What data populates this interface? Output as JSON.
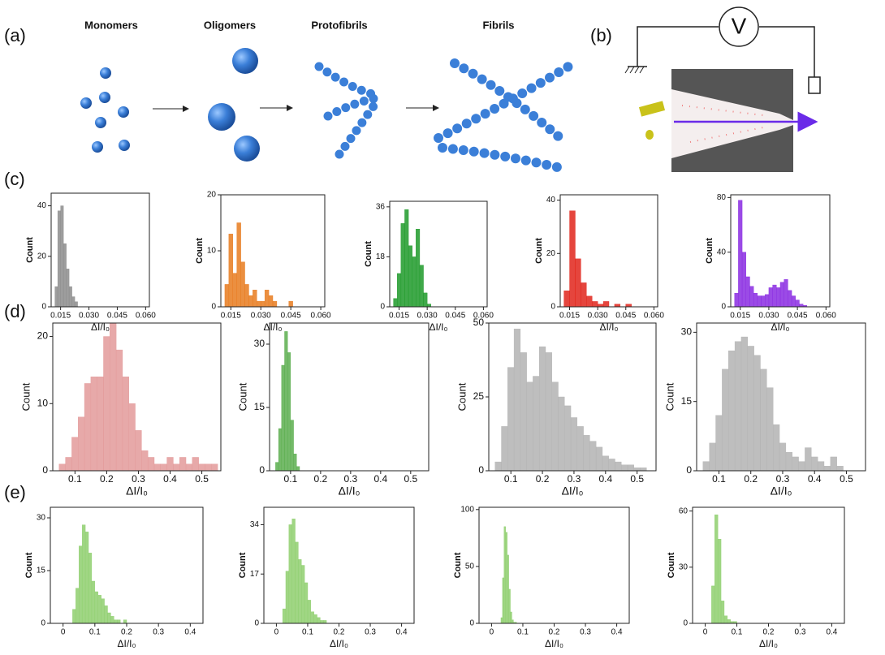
{
  "figure": {
    "panel_labels": [
      "(a)",
      "(b)",
      "(c)",
      "(d)",
      "(e)"
    ],
    "stages": [
      "Monomers",
      "Oligomers",
      "Protofibrils",
      "Fibrils"
    ],
    "voltmeter": "V"
  },
  "chart_data": [
    {
      "type": "histogram",
      "xlabel": "ΔI/I₀",
      "ylabel": "Count",
      "xlim": [
        0.01,
        0.062
      ],
      "ylim": [
        0,
        45
      ],
      "xticks": [
        0.015,
        {
          "value": 0.03,
          "label": "0.030"
        },
        0.045,
        {
          "value": 0.06,
          "label": "0.060"
        }
      ],
      "yticks": [
        0,
        20,
        40
      ],
      "bins": [
        0.012,
        0.0135,
        0.015,
        0.0165,
        0.018,
        0.0195,
        0.021,
        0.0225,
        0.024
      ],
      "series": [
        {
          "color": "#8c8c8c",
          "values": [
            8,
            38,
            40,
            25,
            15,
            8,
            4,
            2
          ]
        }
      ]
    },
    {
      "type": "histogram",
      "xlabel": "ΔI/I₀",
      "ylabel": "Count",
      "xlim": [
        0.01,
        0.062
      ],
      "ylim": [
        0,
        20
      ],
      "xticks": [
        0.015,
        {
          "value": 0.03,
          "label": "0.030"
        },
        0.045,
        {
          "value": 0.06,
          "label": "0.060"
        }
      ],
      "yticks": [
        0,
        10,
        20
      ],
      "bins": [
        0.012,
        0.014,
        0.016,
        0.018,
        0.02,
        0.022,
        0.024,
        0.026,
        0.028,
        0.03,
        0.032,
        0.034,
        0.036,
        0.038,
        0.04,
        0.042,
        0.044,
        0.046,
        0.048
      ],
      "series": [
        {
          "color": "#e87b1e",
          "values": [
            4,
            13,
            6,
            15,
            8,
            4,
            2,
            3,
            1,
            1,
            3,
            2,
            1,
            0,
            0,
            0,
            1,
            0
          ]
        }
      ]
    },
    {
      "type": "histogram",
      "xlabel": "ΔI/I₀",
      "ylabel": "Count",
      "xlim": [
        0.01,
        0.062
      ],
      "ylim": [
        0,
        38
      ],
      "xticks": [
        0.015,
        {
          "value": 0.03,
          "label": "0.030"
        },
        0.045,
        {
          "value": 0.06,
          "label": "0.060"
        }
      ],
      "yticks": [
        0,
        18,
        36
      ],
      "bins": [
        0.012,
        0.014,
        0.016,
        0.018,
        0.02,
        0.022,
        0.024,
        0.026,
        0.028,
        0.03,
        0.032
      ],
      "series": [
        {
          "color": "#1f9a2a",
          "values": [
            3,
            12,
            30,
            35,
            22,
            18,
            28,
            15,
            5,
            1
          ]
        }
      ]
    },
    {
      "type": "histogram",
      "xlabel": "ΔI/I₀",
      "ylabel": "Count",
      "xlim": [
        0.01,
        0.062
      ],
      "ylim": [
        0,
        42
      ],
      "xticks": [
        0.015,
        {
          "value": 0.03,
          "label": "0.030"
        },
        0.045,
        {
          "value": 0.06,
          "label": "0.060"
        }
      ],
      "yticks": [
        0,
        20,
        40
      ],
      "bins": [
        0.012,
        0.015,
        0.018,
        0.021,
        0.024,
        0.027,
        0.03,
        0.033,
        0.036,
        0.039,
        0.042,
        0.045,
        0.048
      ],
      "series": [
        {
          "color": "#e0241b",
          "values": [
            6,
            36,
            18,
            9,
            4,
            2,
            1,
            2,
            0,
            1,
            0,
            1
          ]
        }
      ]
    },
    {
      "type": "histogram",
      "xlabel": "ΔI/I₀",
      "ylabel": "Count",
      "xlim": [
        0.01,
        0.062
      ],
      "ylim": [
        0,
        82
      ],
      "xticks": [
        0.015,
        {
          "value": 0.03,
          "label": "0.030"
        },
        0.045,
        {
          "value": 0.06,
          "label": "0.060"
        }
      ],
      "yticks": [
        0,
        40,
        80
      ],
      "bins": [
        0.012,
        0.014,
        0.016,
        0.018,
        0.02,
        0.022,
        0.024,
        0.026,
        0.028,
        0.03,
        0.032,
        0.034,
        0.036,
        0.038,
        0.04,
        0.042,
        0.044,
        0.046,
        0.048,
        0.05
      ],
      "series": [
        {
          "color": "#8a2be2",
          "values": [
            10,
            78,
            40,
            22,
            15,
            10,
            8,
            8,
            9,
            14,
            16,
            14,
            18,
            20,
            12,
            8,
            5,
            2,
            1
          ]
        }
      ]
    },
    {
      "type": "histogram",
      "xlabel": "ΔI/I₀",
      "ylabel": "Count",
      "xlim": [
        0.03,
        0.56
      ],
      "ylim": [
        0,
        22
      ],
      "xticks": [
        0.1,
        0.2,
        0.3,
        0.4,
        0.5
      ],
      "yticks": [
        0,
        10,
        20
      ],
      "bins": [
        0.05,
        0.07,
        0.09,
        0.11,
        0.13,
        0.15,
        0.17,
        0.19,
        0.21,
        0.23,
        0.25,
        0.27,
        0.29,
        0.31,
        0.33,
        0.35,
        0.37,
        0.39,
        0.41,
        0.43,
        0.45,
        0.47,
        0.49,
        0.51,
        0.53,
        0.55
      ],
      "series": [
        {
          "color": "#e39a9a",
          "values": [
            1,
            2,
            5,
            8,
            13,
            14,
            14,
            20,
            22,
            18,
            14,
            10,
            6,
            3,
            2,
            1,
            1,
            2,
            1,
            2,
            1,
            2,
            1,
            1,
            1
          ]
        }
      ]
    },
    {
      "type": "histogram",
      "xlabel": "ΔI/I₀",
      "ylabel": "Count",
      "xlim": [
        0.03,
        0.56
      ],
      "ylim": [
        0,
        35
      ],
      "xticks": [
        0.1,
        0.2,
        0.3,
        0.4,
        0.5
      ],
      "yticks": [
        0,
        15,
        30
      ],
      "bins": [
        0.05,
        0.06,
        0.07,
        0.08,
        0.09,
        0.1,
        0.11,
        0.12,
        0.13
      ],
      "series": [
        {
          "color": "#5cae4f",
          "values": [
            2,
            10,
            25,
            33,
            28,
            12,
            4,
            1
          ]
        }
      ]
    },
    {
      "type": "histogram",
      "xlabel": "ΔI/I₀",
      "ylabel": "Count",
      "xlim": [
        0.03,
        0.56
      ],
      "ylim": [
        0,
        50
      ],
      "xticks": [
        0.1,
        0.2,
        0.3,
        0.4,
        0.5
      ],
      "yticks": [
        0,
        25,
        50
      ],
      "bins": [
        0.05,
        0.07,
        0.09,
        0.11,
        0.13,
        0.15,
        0.17,
        0.19,
        0.21,
        0.23,
        0.25,
        0.27,
        0.29,
        0.31,
        0.33,
        0.35,
        0.37,
        0.39,
        0.41,
        0.43,
        0.45,
        0.47,
        0.49,
        0.51,
        0.53
      ],
      "series": [
        {
          "color": "#b3b3b3",
          "values": [
            3,
            15,
            35,
            48,
            40,
            30,
            32,
            42,
            40,
            30,
            25,
            22,
            18,
            15,
            12,
            10,
            8,
            5,
            4,
            3,
            2,
            2,
            1,
            1
          ]
        }
      ]
    },
    {
      "type": "histogram",
      "xlabel": "ΔI/I₀",
      "ylabel": "Count",
      "xlim": [
        0.03,
        0.56
      ],
      "ylim": [
        0,
        32
      ],
      "xticks": [
        0.1,
        0.2,
        0.3,
        0.4,
        0.5
      ],
      "yticks": [
        0,
        15,
        30
      ],
      "bins": [
        0.05,
        0.07,
        0.09,
        0.11,
        0.13,
        0.15,
        0.17,
        0.19,
        0.21,
        0.23,
        0.25,
        0.27,
        0.29,
        0.31,
        0.33,
        0.35,
        0.37,
        0.39,
        0.41,
        0.43,
        0.45,
        0.47,
        0.49
      ],
      "series": [
        {
          "color": "#b3b3b3",
          "values": [
            2,
            6,
            12,
            22,
            26,
            28,
            29,
            27,
            25,
            22,
            18,
            10,
            6,
            4,
            3,
            2,
            5,
            3,
            2,
            1,
            3,
            1
          ]
        }
      ]
    },
    {
      "type": "histogram",
      "xlabel": "ΔI/I₀",
      "ylabel": "Count",
      "xlim": [
        -0.04,
        0.44
      ],
      "ylim": [
        0,
        33
      ],
      "xticks": [
        0,
        0.1,
        0.2,
        0.3,
        0.4
      ],
      "yticks": [
        0,
        15,
        30
      ],
      "bins": [
        0.03,
        0.04,
        0.05,
        0.06,
        0.07,
        0.08,
        0.09,
        0.1,
        0.11,
        0.12,
        0.13,
        0.14,
        0.15,
        0.16,
        0.17,
        0.18,
        0.19,
        0.2,
        0.21
      ],
      "series": [
        {
          "color": "#8fcf6f",
          "values": [
            4,
            10,
            22,
            28,
            26,
            20,
            12,
            9,
            8,
            7,
            5,
            3,
            2,
            1,
            1,
            0,
            1,
            0
          ]
        }
      ]
    },
    {
      "type": "histogram",
      "xlabel": "ΔI/I₀",
      "ylabel": "Count",
      "xlim": [
        -0.04,
        0.44
      ],
      "ylim": [
        0,
        40
      ],
      "xticks": [
        0,
        0.1,
        0.2,
        0.3,
        0.4
      ],
      "yticks": [
        0,
        17,
        34
      ],
      "bins": [
        0.02,
        0.03,
        0.04,
        0.05,
        0.06,
        0.07,
        0.08,
        0.09,
        0.1,
        0.11,
        0.12,
        0.13,
        0.14,
        0.15,
        0.16
      ],
      "series": [
        {
          "color": "#8fcf6f",
          "values": [
            5,
            18,
            34,
            36,
            28,
            22,
            20,
            14,
            8,
            4,
            3,
            2,
            1,
            1
          ]
        }
      ]
    },
    {
      "type": "histogram",
      "xlabel": "ΔI/I₀",
      "ylabel": "Count",
      "xlim": [
        -0.04,
        0.44
      ],
      "ylim": [
        0,
        102
      ],
      "xticks": [
        0,
        0.1,
        0.2,
        0.3,
        0.4
      ],
      "yticks": [
        0,
        50,
        100
      ],
      "bins": [
        0.03,
        0.035,
        0.04,
        0.045,
        0.05,
        0.055,
        0.06,
        0.065,
        0.07,
        0.075,
        0.08
      ],
      "series": [
        {
          "color": "#8fcf6f",
          "values": [
            5,
            40,
            85,
            80,
            60,
            30,
            10,
            3,
            1,
            1
          ]
        }
      ]
    },
    {
      "type": "histogram",
      "xlabel": "ΔI/I₀",
      "ylabel": "Count",
      "xlim": [
        -0.04,
        0.44
      ],
      "ylim": [
        0,
        62
      ],
      "xticks": [
        0,
        0.1,
        0.2,
        0.3,
        0.4
      ],
      "yticks": [
        0,
        30,
        60
      ],
      "bins": [
        0.02,
        0.03,
        0.04,
        0.05,
        0.06,
        0.07,
        0.08,
        0.09,
        0.1
      ],
      "series": [
        {
          "color": "#8fcf6f",
          "values": [
            20,
            58,
            45,
            12,
            4,
            2,
            1,
            1
          ]
        }
      ]
    }
  ]
}
